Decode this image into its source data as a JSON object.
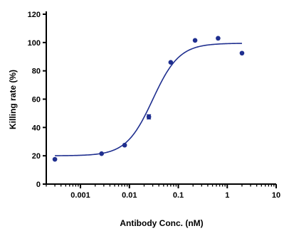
{
  "chart_data": {
    "type": "scatter",
    "xlabel": "Antibody Conc. (nM)",
    "ylabel": "Killing rate (%)",
    "x_scale": "log",
    "xlim": [
      0.0002,
      10
    ],
    "ylim": [
      0,
      120
    ],
    "x_ticks": [
      0.001,
      0.01,
      0.1,
      1,
      10
    ],
    "x_tick_labels": [
      "0.001",
      "0.01",
      "0.1",
      "1",
      "10"
    ],
    "y_ticks": [
      0,
      20,
      40,
      60,
      80,
      100,
      120
    ],
    "y_tick_labels": [
      "0",
      "20",
      "40",
      "60",
      "80",
      "100",
      "120"
    ],
    "grid": false,
    "color": "#1f2f8f",
    "series": [
      {
        "x": [
          0.0003,
          0.0027,
          0.008,
          0.025,
          0.07,
          0.22,
          0.65,
          2.0
        ],
        "y": [
          17.5,
          21.5,
          27.5,
          47.5,
          86,
          101.5,
          103,
          92.5
        ],
        "errors": [
          0,
          0,
          0,
          1.5,
          0,
          0,
          0,
          0
        ]
      }
    ],
    "fit": {
      "type": "4PL sigmoid",
      "bottom": 20,
      "top": 99.5,
      "ec50": 0.03,
      "hill": 1.6
    }
  }
}
